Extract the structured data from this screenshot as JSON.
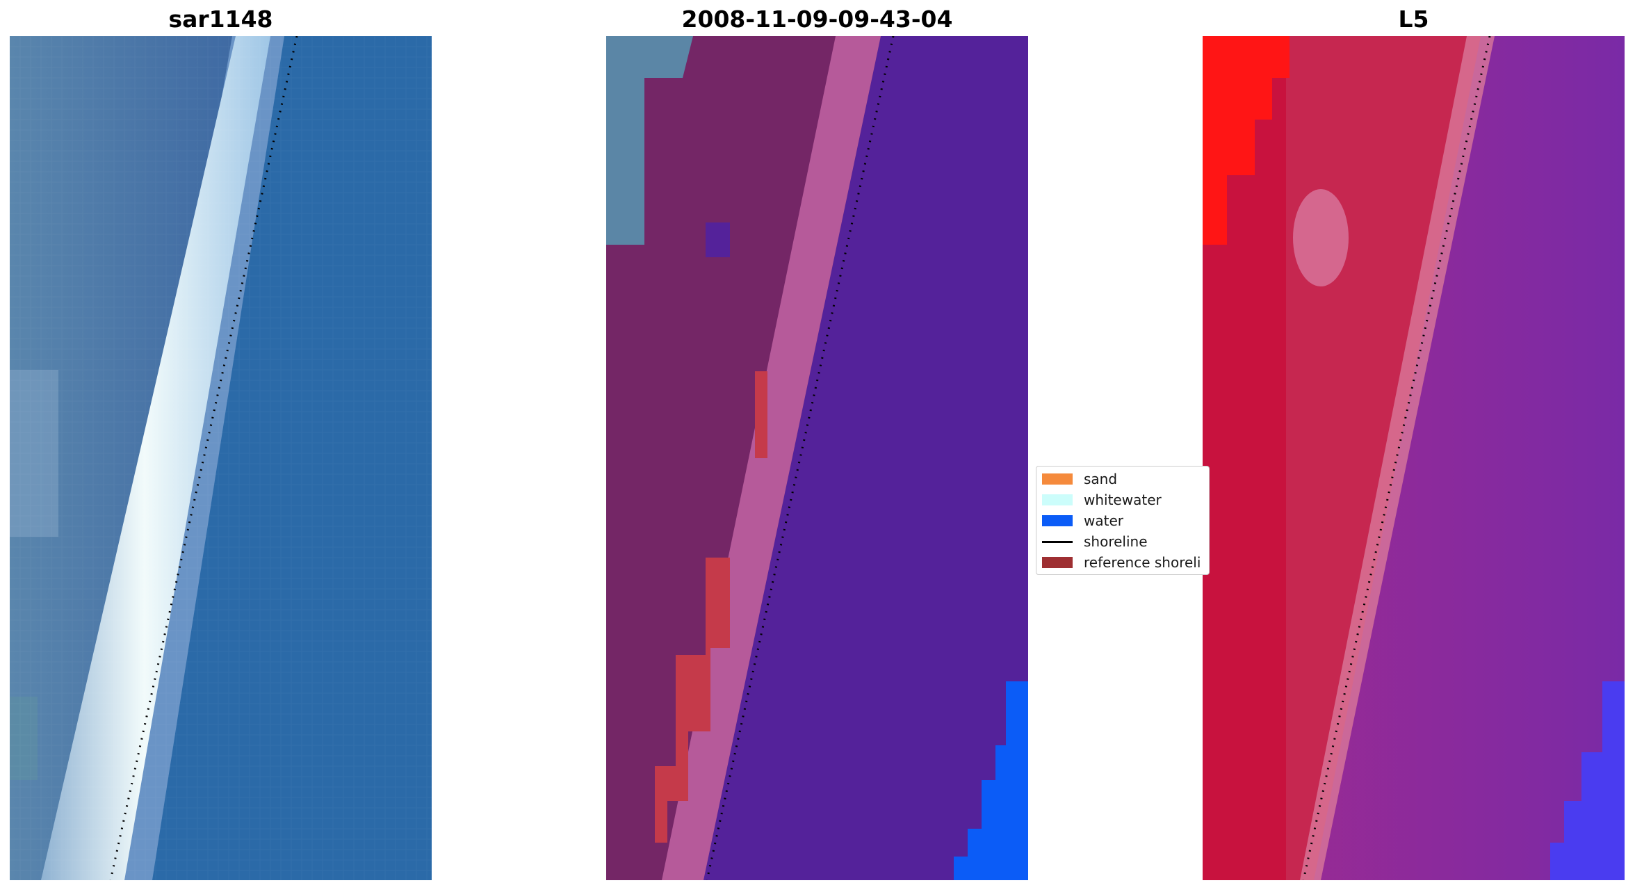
{
  "panels": [
    {
      "title": "sar1148"
    },
    {
      "title": "2008-11-09-09-43-04"
    },
    {
      "title": "L5"
    }
  ],
  "legend": {
    "items": [
      {
        "label": "sand",
        "color": "#f58a3c",
        "kind": "patch"
      },
      {
        "label": "whitewater",
        "color": "#ccfdfb",
        "kind": "patch"
      },
      {
        "label": "water",
        "color": "#0b5cf7",
        "kind": "patch"
      },
      {
        "label": "shoreline",
        "color": "#000000",
        "kind": "line"
      },
      {
        "label": "reference shoreli",
        "color": "#9e2f32",
        "kind": "patch"
      }
    ]
  },
  "colors": {
    "rgb_water": "#2e6fa9",
    "rgb_land": "#4a6fa3",
    "rgb_whitewater": "#e6f4f5",
    "classified_water": "#54229a",
    "classified_land": "#742666",
    "classified_wet": "#b65a9a",
    "classified_sand_overlay": "#c53a4a",
    "classified_true_water": "#0b5cf7",
    "mndwi_land": "#c8123e",
    "mndwi_water": "#7a2aa6",
    "mndwi_bright": "#ff1515"
  }
}
